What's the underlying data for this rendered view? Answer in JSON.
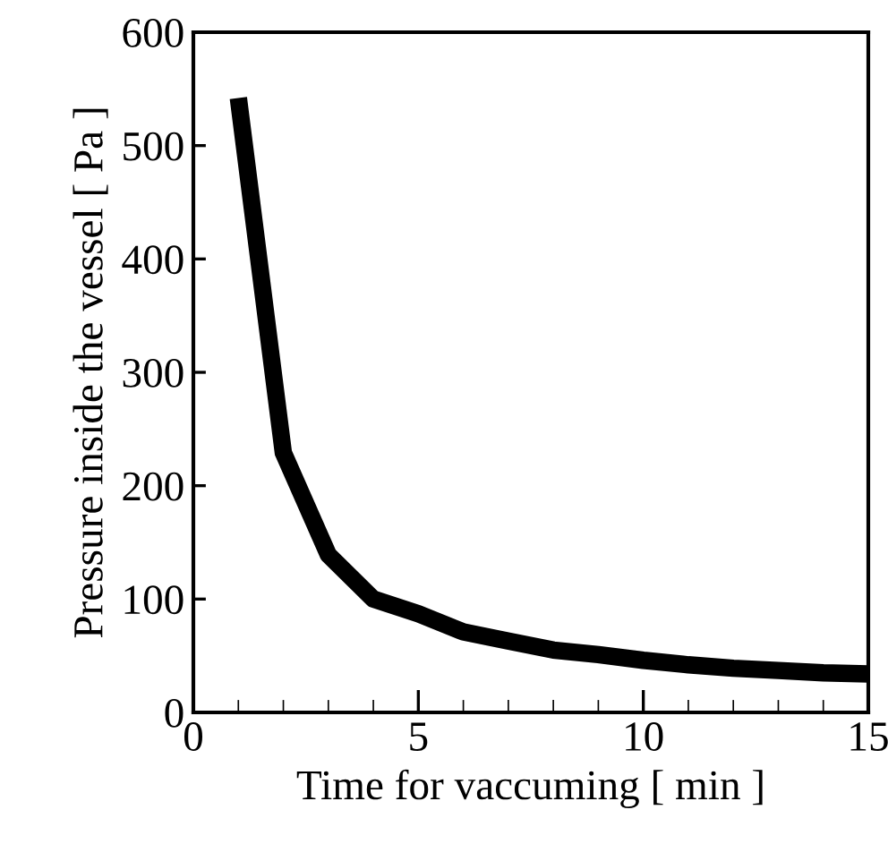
{
  "chart_data": {
    "type": "line",
    "xlabel": "Time for vaccuming [ min ]",
    "ylabel": "Pressure inside the vessel [ Pa ]",
    "x": [
      1,
      2,
      3,
      4,
      5,
      6,
      7,
      8,
      9,
      10,
      11,
      12,
      13,
      14,
      15
    ],
    "series": [
      {
        "color": "#000000",
        "values": [
          542,
          229,
          139,
          100,
          87,
          71,
          63,
          55,
          51,
          46,
          42,
          39,
          37,
          35,
          34
        ]
      }
    ],
    "xlim": [
      0,
      15
    ],
    "xticks": [
      0,
      5,
      10,
      15
    ],
    "ylim": [
      0,
      600
    ],
    "yticks": [
      0,
      100,
      200,
      300,
      400,
      500,
      600
    ],
    "grid": false,
    "legend": false,
    "marker": "none",
    "line_style": "solid"
  }
}
